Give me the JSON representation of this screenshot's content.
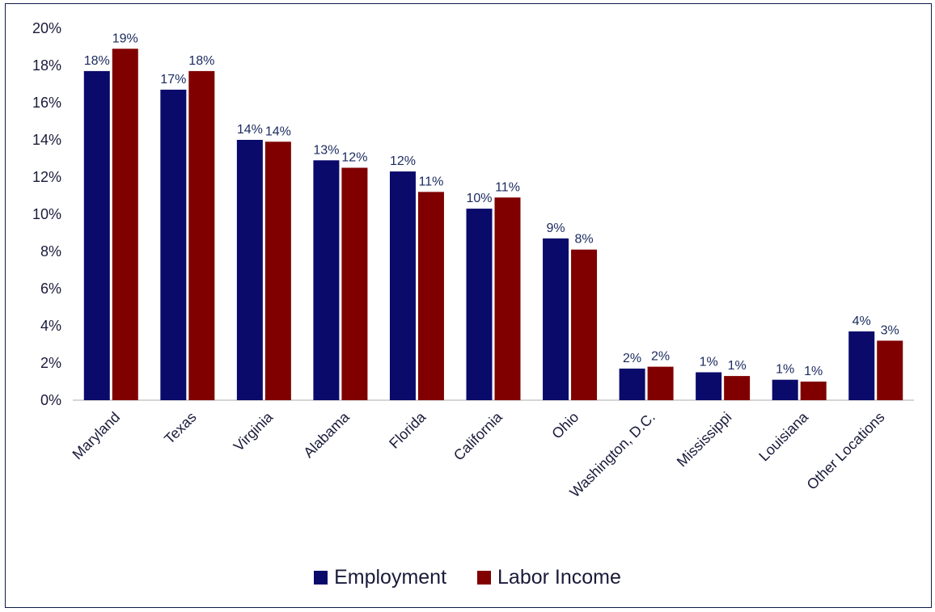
{
  "chart_data": {
    "type": "bar",
    "categories": [
      "Maryland",
      "Texas",
      "Virginia",
      "Alabama",
      "Florida",
      "California",
      "Ohio",
      "Washington, D.C.",
      "Mississippi",
      "Louisiana",
      "Other Locations"
    ],
    "series": [
      {
        "name": "Employment",
        "color": "#0a0a6b",
        "values": [
          17.7,
          16.7,
          14.0,
          12.9,
          12.3,
          10.3,
          8.7,
          1.7,
          1.5,
          1.1,
          3.7
        ],
        "labels": [
          "18%",
          "17%",
          "14%",
          "13%",
          "12%",
          "10%",
          "9%",
          "2%",
          "1%",
          "1%",
          "4%"
        ]
      },
      {
        "name": "Labor Income",
        "color": "#800000",
        "values": [
          18.9,
          17.7,
          13.9,
          12.5,
          11.2,
          10.9,
          8.1,
          1.8,
          1.3,
          1.0,
          3.2
        ],
        "labels": [
          "19%",
          "18%",
          "14%",
          "12%",
          "11%",
          "11%",
          "8%",
          "2%",
          "1%",
          "1%",
          "3%"
        ]
      }
    ],
    "y_ticks": [
      "0%",
      "2%",
      "4%",
      "6%",
      "8%",
      "10%",
      "12%",
      "14%",
      "16%",
      "18%",
      "20%"
    ],
    "ylim": [
      0,
      20
    ],
    "grid": false,
    "legend_position": "bottom"
  }
}
